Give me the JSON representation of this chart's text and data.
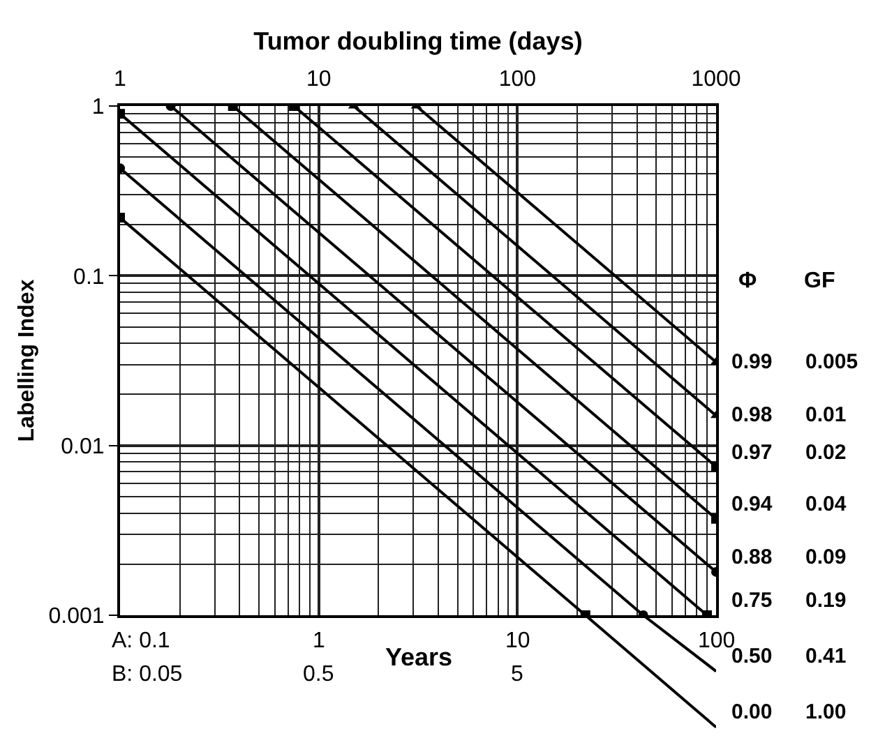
{
  "chart_data": {
    "type": "line",
    "xlabel": "Tumor doubling time (days)",
    "ylabel": "Labelling Index",
    "xlim": [
      1,
      1000
    ],
    "xticks": [
      1,
      10,
      100,
      1000
    ],
    "ylim": [
      0.001,
      1
    ],
    "yticks": [
      {
        "value": 0.001,
        "label": "0.001"
      },
      {
        "value": 0.01,
        "label": "0.01"
      },
      {
        "value": 0.1,
        "label": "0.1"
      },
      {
        "value": 1,
        "label": "1"
      }
    ],
    "log": "xy",
    "grid": true,
    "legend": false,
    "line_style": "solid",
    "annotations": [
      "Φ",
      "GF",
      "0.005",
      "0.01",
      "0.02",
      "0.04",
      "0.09",
      "0.19",
      "0.41",
      "1.00",
      "Years",
      "A: 0.1",
      "1",
      "10",
      "100",
      "B: 0.05",
      "0.5",
      "5"
    ],
    "series": [
      {
        "name": "0.99",
        "color": "#000000",
        "marker": "triangle",
        "x": [
          31,
          1000
        ],
        "values": [
          1,
          0.031
        ]
      },
      {
        "name": "0.98",
        "color": "#000000",
        "marker": "triangle",
        "x": [
          15,
          1000
        ],
        "values": [
          1,
          0.015
        ]
      },
      {
        "name": "0.97",
        "color": "#000000",
        "marker": "square",
        "x": [
          7.5,
          1000
        ],
        "values": [
          1,
          0.0075
        ]
      },
      {
        "name": "0.94",
        "color": "#000000",
        "marker": "square",
        "x": [
          3.7,
          1000
        ],
        "values": [
          1,
          0.0037
        ]
      },
      {
        "name": "0.88",
        "color": "#000000",
        "marker": "circle",
        "x": [
          1.8,
          1000
        ],
        "values": [
          1,
          0.0018
        ]
      },
      {
        "name": "0.75",
        "color": "#000000",
        "marker": "square",
        "x": [
          1,
          900
        ],
        "values": [
          0.9,
          0.001
        ]
      },
      {
        "name": "0.50",
        "color": "#000000",
        "marker": "circle",
        "x": [
          1,
          430
        ],
        "values": [
          0.43,
          0.001
        ]
      },
      {
        "name": "0.00",
        "color": "#000000",
        "marker": "square",
        "x": [
          1,
          220
        ],
        "values": [
          0.22,
          0.001
        ]
      }
    ]
  }
}
